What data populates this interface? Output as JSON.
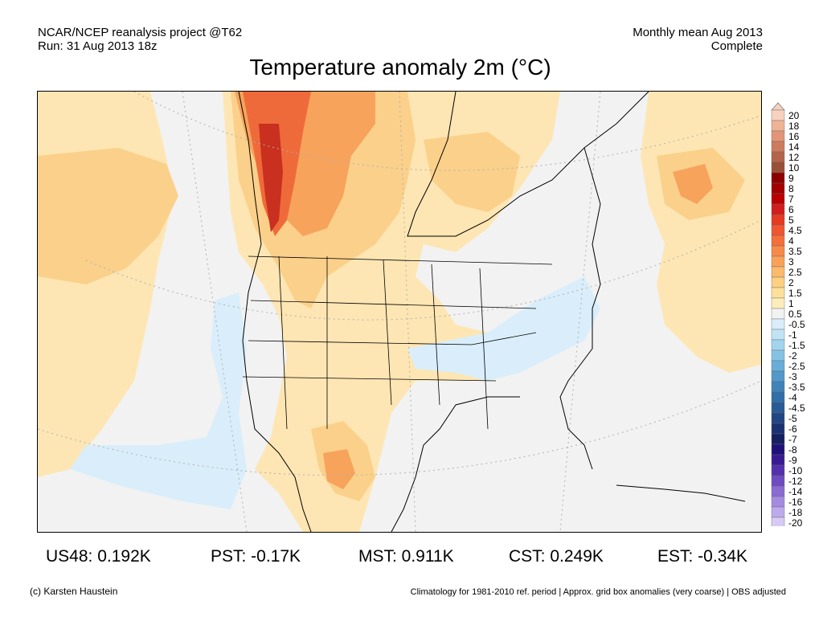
{
  "header": {
    "source_line": "NCAR/NCEP reanalysis project @T62",
    "run_line": "Run: 31 Aug 2013 18z",
    "period_line": "Monthly mean Aug 2013",
    "status_line": "Complete"
  },
  "title": "Temperature anomaly 2m (°C)",
  "stats": {
    "us48": "US48: 0.192K",
    "pst": "PST: -0.17K",
    "mst": "MST: 0.911K",
    "cst": "CST: 0.249K",
    "est": "EST: -0.34K"
  },
  "footer": {
    "copyright": "(c) Karsten Haustein",
    "note": "Climatology for 1981-2010 ref. period | Approx. grid box anomalies (very coarse) | OBS adjusted"
  },
  "colorbar": {
    "labels": [
      "20",
      "18",
      "16",
      "14",
      "12",
      "10",
      "9",
      "8",
      "7",
      "6",
      "5",
      "4.5",
      "4",
      "3.5",
      "3",
      "2.5",
      "2",
      "1.5",
      "1",
      "0.5",
      "-0.5",
      "-1",
      "-1.5",
      "-2",
      "-2.5",
      "-3",
      "-3.5",
      "-4",
      "-4.5",
      "-5",
      "-6",
      "-7",
      "-8",
      "-9",
      "-10",
      "-12",
      "-14",
      "-16",
      "-18",
      "-20"
    ],
    "colors": [
      "#f6d2bf",
      "#eeb295",
      "#e29577",
      "#cd7b5d",
      "#b4644a",
      "#9a4f37",
      "#8e0000",
      "#a30000",
      "#bb0000",
      "#d21d1d",
      "#e53a22",
      "#ef5630",
      "#f46f3a",
      "#f78a48",
      "#f9a159",
      "#fbba6c",
      "#fccf82",
      "#fde09a",
      "#fdedbb",
      "#f2f2f2",
      "#d9eefa",
      "#c0e3f6",
      "#a3d4ee",
      "#84c2e4",
      "#68aed8",
      "#5099c9",
      "#3f83b9",
      "#326fa8",
      "#295b96",
      "#214684",
      "#1b3272",
      "#172060",
      "#20117a",
      "#3a1a94",
      "#5530ae",
      "#6f4cc2",
      "#8a6bd2",
      "#a48be0",
      "#bdaaec",
      "#d7cbf5"
    ]
  },
  "map": {
    "projection_note": "",
    "colors": {
      "warm_light": "#fde6b3",
      "warm_mid": "#fbd08a",
      "warm_strong": "#f7a35c",
      "warm_hot": "#ef6a3a",
      "warm_max": "#c93020",
      "cool_light": "#d9eefa",
      "neutral": "#f2f2f2"
    }
  }
}
